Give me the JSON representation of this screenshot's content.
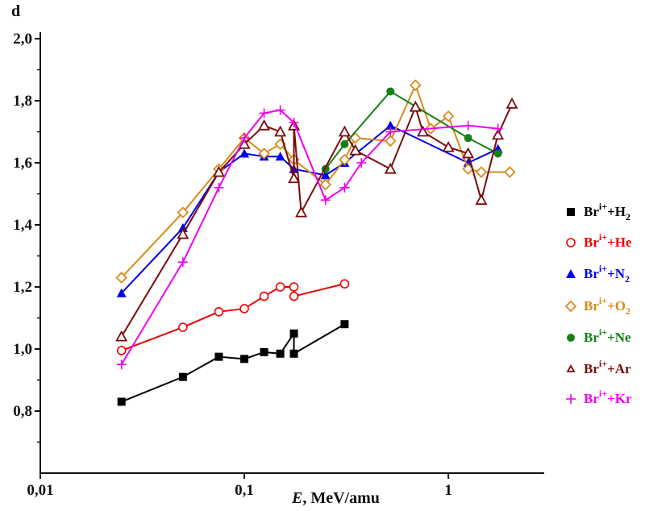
{
  "chart_data": {
    "type": "line",
    "title": "",
    "xlabel_var": "E",
    "xlabel_unit": ", MeV/amu",
    "ylabel": "d",
    "xscale": "log",
    "xlim": [
      0.01,
      2.95
    ],
    "ylim": [
      0.6,
      2.0
    ],
    "xticks": [
      {
        "v": 0.01,
        "label": "0,01"
      },
      {
        "v": 0.1,
        "label": "0,1"
      },
      {
        "v": 1,
        "label": "1"
      }
    ],
    "yticks": [
      {
        "v": 0.8,
        "label": "0,8"
      },
      {
        "v": 1.0,
        "label": "1,0"
      },
      {
        "v": 1.2,
        "label": "1,2"
      },
      {
        "v": 1.4,
        "label": "1,4"
      },
      {
        "v": 1.6,
        "label": "1,6"
      },
      {
        "v": 1.8,
        "label": "1,8"
      },
      {
        "v": 2.0,
        "label": "2,0"
      }
    ],
    "grid": false,
    "legend_position": "right",
    "series": [
      {
        "name": "Br i+ + H2",
        "base": "Br",
        "sup": "i+",
        "rest": "+H",
        "sub": "2",
        "color": "#000000",
        "marker": "square",
        "x": [
          0.025,
          0.05,
          0.075,
          0.1,
          0.125,
          0.15,
          0.175,
          0.175,
          0.31
        ],
        "y": [
          0.83,
          0.91,
          0.975,
          0.968,
          0.99,
          0.985,
          1.05,
          0.985,
          1.08
        ]
      },
      {
        "name": "Br i+ + He",
        "base": "Br",
        "sup": "i+",
        "rest": "+He",
        "sub": "",
        "color": "#ee0000",
        "marker": "circle-open",
        "x": [
          0.025,
          0.05,
          0.075,
          0.1,
          0.125,
          0.15,
          0.175,
          0.175,
          0.31
        ],
        "y": [
          0.995,
          1.07,
          1.12,
          1.13,
          1.17,
          1.2,
          1.2,
          1.17,
          1.21
        ]
      },
      {
        "name": "Br i+ + N2",
        "base": "Br",
        "sup": "i+",
        "rest": "+N",
        "sub": "2",
        "color": "#0000ee",
        "marker": "triangle",
        "x": [
          0.025,
          0.05,
          0.075,
          0.1,
          0.125,
          0.15,
          0.175,
          0.25,
          0.31,
          0.52,
          1.25,
          1.75
        ],
        "y": [
          1.18,
          1.39,
          1.57,
          1.63,
          1.62,
          1.62,
          1.58,
          1.56,
          1.6,
          1.72,
          1.6,
          1.645
        ]
      },
      {
        "name": "Br i+ + O2",
        "base": "Br",
        "sup": "i+",
        "rest": "+O",
        "sub": "2",
        "color": "#d88a1a",
        "marker": "diamond-open",
        "x": [
          0.025,
          0.05,
          0.075,
          0.1,
          0.125,
          0.15,
          0.175,
          0.25,
          0.31,
          0.35,
          0.52,
          0.69,
          0.82,
          1.0,
          1.25,
          1.45,
          2.0
        ],
        "y": [
          1.23,
          1.44,
          1.58,
          1.68,
          1.63,
          1.66,
          1.61,
          1.53,
          1.61,
          1.68,
          1.67,
          1.85,
          1.71,
          1.75,
          1.58,
          1.57,
          1.57
        ]
      },
      {
        "name": "Br i+ + Ne",
        "base": "Br",
        "sup": "i+",
        "rest": "+Ne",
        "sub": "",
        "color": "#158015",
        "marker": "circle",
        "x": [
          0.25,
          0.31,
          0.52,
          1.25,
          1.75
        ],
        "y": [
          1.58,
          1.66,
          1.83,
          1.68,
          1.63
        ]
      },
      {
        "name": "Br i+ + Ar",
        "base": "Br",
        "sup": "i+",
        "rest": "+Ar",
        "sub": "",
        "color": "#7a0a0a",
        "marker": "triangle-open",
        "x": [
          0.025,
          0.05,
          0.075,
          0.1,
          0.125,
          0.15,
          0.175,
          0.175,
          0.19,
          0.31,
          0.35,
          0.52,
          0.69,
          0.75,
          1.0,
          1.25,
          1.45,
          1.75,
          2.05
        ],
        "y": [
          1.04,
          1.37,
          1.57,
          1.66,
          1.72,
          1.7,
          1.55,
          1.72,
          1.44,
          1.7,
          1.64,
          1.58,
          1.78,
          1.7,
          1.65,
          1.63,
          1.48,
          1.69,
          1.79
        ]
      },
      {
        "name": "Br i+ + Kr",
        "base": "Br",
        "sup": "i+",
        "rest": "+Kr",
        "sub": "",
        "color": "#ee00ee",
        "marker": "plus",
        "x": [
          0.025,
          0.05,
          0.075,
          0.1,
          0.125,
          0.15,
          0.175,
          0.25,
          0.31,
          0.375,
          0.52,
          1.25,
          1.75
        ],
        "y": [
          0.95,
          1.28,
          1.52,
          1.68,
          1.76,
          1.77,
          1.73,
          1.48,
          1.52,
          1.6,
          1.7,
          1.72,
          1.71
        ]
      }
    ]
  }
}
